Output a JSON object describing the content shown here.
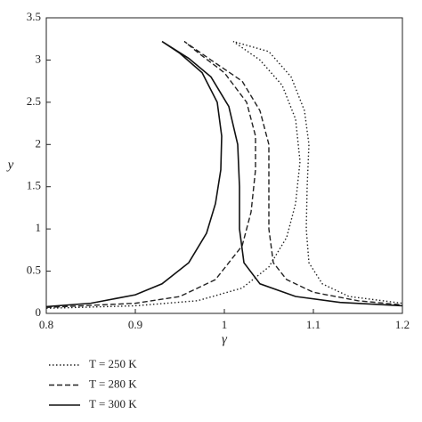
{
  "chart_data": {
    "type": "line",
    "x_label": "γ",
    "y_label": "y",
    "xlim": [
      0.8,
      1.2
    ],
    "ylim": [
      0,
      3.5
    ],
    "xticks": [
      0.8,
      0.9,
      1,
      1.1,
      1.2
    ],
    "yticks": [
      0,
      0.5,
      1,
      1.5,
      2,
      2.5,
      3,
      3.5
    ],
    "grid": false,
    "legend": "below",
    "series": [
      {
        "name": "T = 250 K",
        "color": "#222222",
        "line_style": "dotted",
        "x": [
          0.8,
          0.9,
          0.97,
          1.02,
          1.05,
          1.07,
          1.08,
          1.085,
          1.08,
          1.065,
          1.04,
          1.01,
          1.05,
          1.075,
          1.09,
          1.095,
          1.093,
          1.092,
          1.095,
          1.11,
          1.14,
          1.2
        ],
        "values": [
          0.06,
          0.09,
          0.15,
          0.3,
          0.55,
          0.9,
          1.3,
          1.8,
          2.3,
          2.7,
          3.0,
          3.22,
          3.1,
          2.8,
          2.4,
          2.0,
          1.5,
          1.0,
          0.6,
          0.35,
          0.2,
          0.12
        ]
      },
      {
        "name": "T = 280 K",
        "color": "#222222",
        "line_style": "dashed",
        "x": [
          0.8,
          0.9,
          0.95,
          0.99,
          1.02,
          1.03,
          1.035,
          1.035,
          1.025,
          1.0,
          0.975,
          0.955,
          0.985,
          1.02,
          1.04,
          1.05,
          1.05,
          1.05,
          1.055,
          1.07,
          1.1,
          1.15,
          1.2
        ],
        "values": [
          0.07,
          0.12,
          0.2,
          0.4,
          0.8,
          1.2,
          1.7,
          2.1,
          2.5,
          2.85,
          3.05,
          3.22,
          3.0,
          2.75,
          2.4,
          2.0,
          1.5,
          1.0,
          0.6,
          0.4,
          0.25,
          0.15,
          0.1
        ]
      },
      {
        "name": "T = 300 K",
        "color": "#111111",
        "line_style": "solid",
        "x": [
          0.8,
          0.85,
          0.9,
          0.93,
          0.96,
          0.98,
          0.99,
          0.996,
          0.997,
          0.992,
          0.975,
          0.95,
          0.93,
          0.96,
          0.985,
          1.005,
          1.015,
          1.017,
          1.017,
          1.022,
          1.04,
          1.08,
          1.13,
          1.2
        ],
        "values": [
          0.08,
          0.12,
          0.22,
          0.35,
          0.6,
          0.95,
          1.3,
          1.7,
          2.1,
          2.5,
          2.85,
          3.08,
          3.22,
          3.02,
          2.8,
          2.45,
          2.0,
          1.5,
          1.0,
          0.6,
          0.35,
          0.2,
          0.13,
          0.09
        ]
      }
    ]
  }
}
